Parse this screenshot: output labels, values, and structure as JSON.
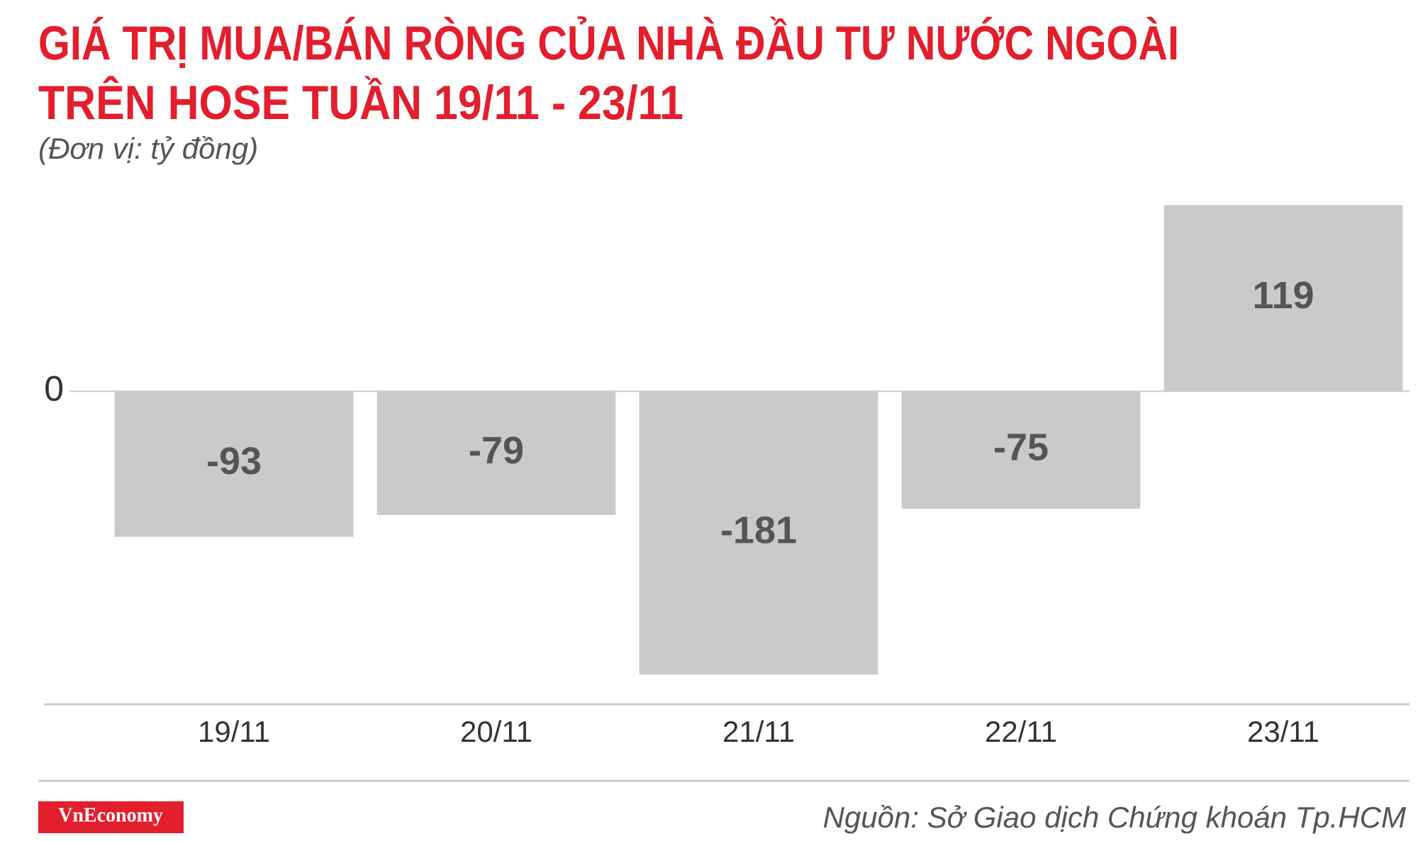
{
  "chart_data": {
    "type": "bar",
    "title": [
      "GIÁ TRỊ MUA/BÁN RÒNG CỦA NHÀ ĐẦU TƯ NƯỚC NGOÀI",
      "TRÊN HOSE TUẦN 19/11 - 23/11"
    ],
    "subtitle": "(Đơn vị: tỷ đồng)",
    "categories": [
      "19/11",
      "20/11",
      "21/11",
      "22/11",
      "23/11"
    ],
    "values": [
      -93,
      -79,
      -181,
      -75,
      119
    ],
    "color": "#cbcaca",
    "ylim": [
      -200,
      150
    ],
    "yticks": [
      0
    ],
    "logo": "VnEconomy",
    "source": "Nguồn: Sở Giao dịch Chứng khoán Tp.HCM"
  }
}
